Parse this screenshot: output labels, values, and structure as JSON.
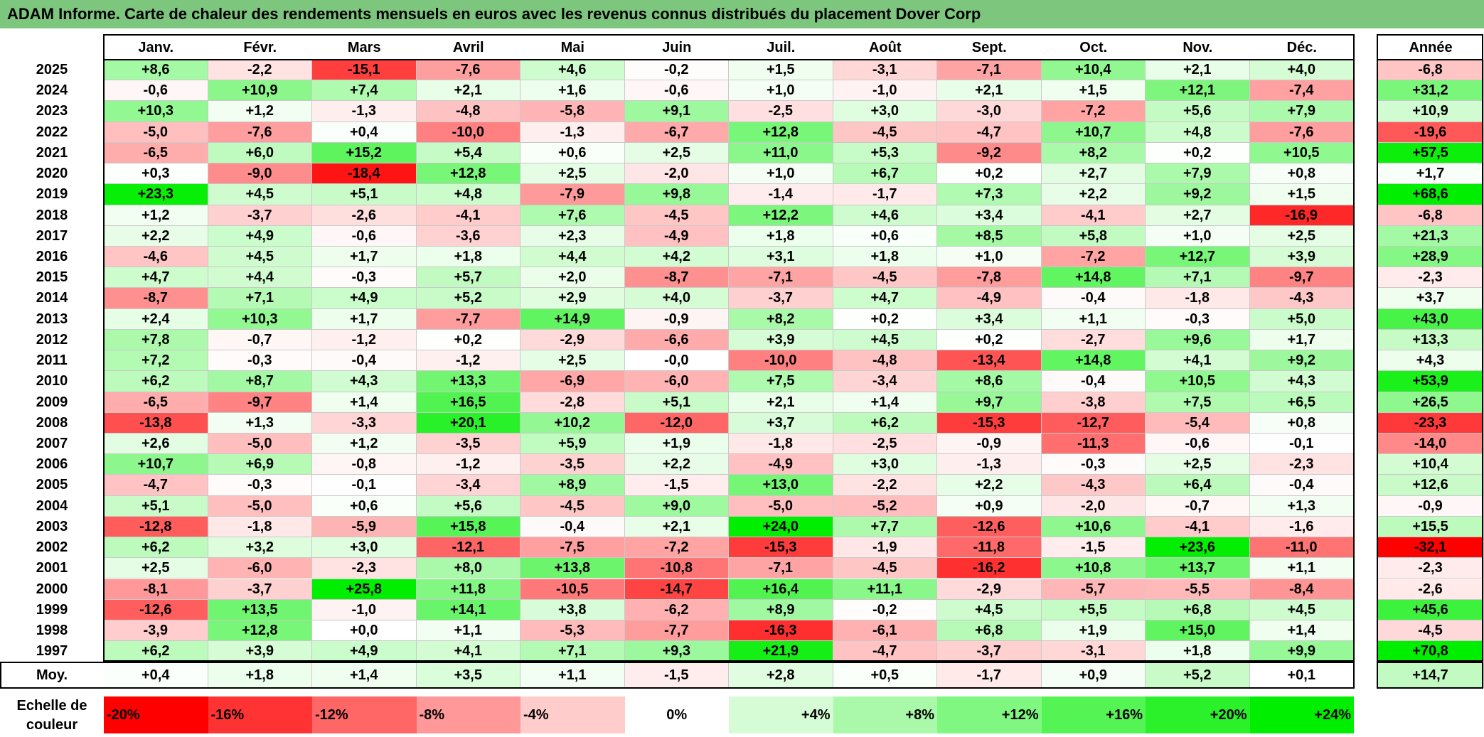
{
  "title": "ADAM Informe. Carte de chaleur des rendements mensuels en euros avec les revenus connus distribués du placement Dover Corp",
  "months": [
    "Janv.",
    "Févr.",
    "Mars",
    "Avril",
    "Mai",
    "Juin",
    "Juil.",
    "Août",
    "Sept.",
    "Oct.",
    "Nov.",
    "Déc."
  ],
  "year_header": "Année",
  "avg_label": "Moy.",
  "scale_label": "Echelle de couleur",
  "colors": {
    "negative_max": "#ff0000",
    "neutral": "#ffffff",
    "positive_max": "#00ee00",
    "title_bg": "#7dc67d"
  },
  "chart_data": {
    "type": "heatmap",
    "title": "ADAM Informe. Carte de chaleur des rendements mensuels en euros avec les revenus connus distribués du placement Dover Corp",
    "x_categories": [
      "Janv.",
      "Févr.",
      "Mars",
      "Avril",
      "Mai",
      "Juin",
      "Juil.",
      "Août",
      "Sept.",
      "Oct.",
      "Nov.",
      "Déc."
    ],
    "color_range": [
      -20,
      24
    ],
    "rows": [
      {
        "year": "2025",
        "values": [
          "+8,6",
          "-2,2",
          "-15,1",
          "-7,6",
          "+4,6",
          "-0,2",
          "+1,5",
          "-3,1",
          "-7,1",
          "+10,4",
          "+2,1",
          "+4,0"
        ],
        "annual": "-6,8"
      },
      {
        "year": "2024",
        "values": [
          "-0,6",
          "+10,9",
          "+7,4",
          "+2,1",
          "+1,6",
          "-0,6",
          "+1,0",
          "-1,0",
          "+2,1",
          "+1,5",
          "+12,1",
          "-7,4"
        ],
        "annual": "+31,2"
      },
      {
        "year": "2023",
        "values": [
          "+10,3",
          "+1,2",
          "-1,3",
          "-4,8",
          "-5,8",
          "+9,1",
          "-2,5",
          "+3,0",
          "-3,0",
          "-7,2",
          "+5,6",
          "+7,9"
        ],
        "annual": "+10,9"
      },
      {
        "year": "2022",
        "values": [
          "-5,0",
          "-7,6",
          "+0,4",
          "-10,0",
          "-1,3",
          "-6,7",
          "+12,8",
          "-4,5",
          "-4,7",
          "+10,7",
          "+4,8",
          "-7,6"
        ],
        "annual": "-19,6"
      },
      {
        "year": "2021",
        "values": [
          "-6,5",
          "+6,0",
          "+15,2",
          "+5,4",
          "+0,6",
          "+2,5",
          "+11,0",
          "+5,3",
          "-9,2",
          "+8,2",
          "+0,2",
          "+10,5"
        ],
        "annual": "+57,5"
      },
      {
        "year": "2020",
        "values": [
          "+0,3",
          "-9,0",
          "-18,4",
          "+12,8",
          "+2,5",
          "-2,0",
          "+1,0",
          "+6,7",
          "+0,2",
          "+2,7",
          "+7,9",
          "+0,8"
        ],
        "annual": "+1,7"
      },
      {
        "year": "2019",
        "values": [
          "+23,3",
          "+4,5",
          "+5,1",
          "+4,8",
          "-7,9",
          "+9,8",
          "-1,4",
          "-1,7",
          "+7,3",
          "+2,2",
          "+9,2",
          "+1,5"
        ],
        "annual": "+68,6"
      },
      {
        "year": "2018",
        "values": [
          "+1,2",
          "-3,7",
          "-2,6",
          "-4,1",
          "+7,6",
          "-4,5",
          "+12,2",
          "+4,6",
          "+3,4",
          "-4,1",
          "+2,7",
          "-16,9"
        ],
        "annual": "-6,8"
      },
      {
        "year": "2017",
        "values": [
          "+2,2",
          "+4,9",
          "-0,6",
          "-3,6",
          "+2,3",
          "-4,9",
          "+1,8",
          "+0,6",
          "+8,5",
          "+5,8",
          "+1,0",
          "+2,5"
        ],
        "annual": "+21,3"
      },
      {
        "year": "2016",
        "values": [
          "-4,6",
          "+4,5",
          "+1,7",
          "+1,8",
          "+4,4",
          "+4,2",
          "+3,1",
          "+1,8",
          "+1,0",
          "-7,2",
          "+12,7",
          "+3,9"
        ],
        "annual": "+28,9"
      },
      {
        "year": "2015",
        "values": [
          "+4,7",
          "+4,4",
          "-0,3",
          "+5,7",
          "+2,0",
          "-8,7",
          "-7,1",
          "-4,5",
          "-7,8",
          "+14,8",
          "+7,1",
          "-9,7"
        ],
        "annual": "-2,3"
      },
      {
        "year": "2014",
        "values": [
          "-8,7",
          "+7,1",
          "+4,9",
          "+5,2",
          "+2,9",
          "+4,0",
          "-3,7",
          "+4,7",
          "-4,9",
          "-0,4",
          "-1,8",
          "-4,3"
        ],
        "annual": "+3,7"
      },
      {
        "year": "2013",
        "values": [
          "+2,4",
          "+10,3",
          "+1,7",
          "-7,7",
          "+14,9",
          "-0,9",
          "+8,2",
          "+0,2",
          "+3,4",
          "+1,1",
          "-0,3",
          "+5,0"
        ],
        "annual": "+43,0"
      },
      {
        "year": "2012",
        "values": [
          "+7,8",
          "-0,7",
          "-1,2",
          "+0,2",
          "-2,9",
          "-6,6",
          "+3,9",
          "+4,5",
          "+0,2",
          "-2,7",
          "+9,6",
          "+1,7"
        ],
        "annual": "+13,3"
      },
      {
        "year": "2011",
        "values": [
          "+7,2",
          "-0,3",
          "-0,4",
          "-1,2",
          "+2,5",
          "-0,0",
          "-10,0",
          "-4,8",
          "-13,4",
          "+14,8",
          "+4,1",
          "+9,2"
        ],
        "annual": "+4,3"
      },
      {
        "year": "2010",
        "values": [
          "+6,2",
          "+8,7",
          "+4,3",
          "+13,3",
          "-6,9",
          "-6,0",
          "+7,5",
          "-3,4",
          "+8,6",
          "-0,4",
          "+10,5",
          "+4,3"
        ],
        "annual": "+53,9"
      },
      {
        "year": "2009",
        "values": [
          "-6,5",
          "-9,7",
          "+1,4",
          "+16,5",
          "-2,8",
          "+5,1",
          "+2,1",
          "+1,4",
          "+9,7",
          "-3,8",
          "+7,5",
          "+6,5"
        ],
        "annual": "+26,5"
      },
      {
        "year": "2008",
        "values": [
          "-13,8",
          "+1,3",
          "-3,3",
          "+20,1",
          "+10,2",
          "-12,0",
          "+3,7",
          "+6,2",
          "-15,3",
          "-12,7",
          "-5,4",
          "+0,8"
        ],
        "annual": "-23,3"
      },
      {
        "year": "2007",
        "values": [
          "+2,6",
          "-5,0",
          "+1,2",
          "-3,5",
          "+5,9",
          "+1,9",
          "-1,8",
          "-2,5",
          "-0,9",
          "-11,3",
          "-0,6",
          "-0,1"
        ],
        "annual": "-14,0"
      },
      {
        "year": "2006",
        "values": [
          "+10,7",
          "+6,9",
          "-0,8",
          "-1,2",
          "-3,5",
          "+2,2",
          "-4,9",
          "+3,0",
          "-1,3",
          "-0,3",
          "+2,5",
          "-2,3"
        ],
        "annual": "+10,4"
      },
      {
        "year": "2005",
        "values": [
          "-4,7",
          "-0,3",
          "-0,1",
          "-3,4",
          "+8,9",
          "-1,5",
          "+13,0",
          "-2,2",
          "+2,2",
          "-4,3",
          "+6,4",
          "-0,4"
        ],
        "annual": "+12,6"
      },
      {
        "year": "2004",
        "values": [
          "+5,1",
          "-5,0",
          "+0,6",
          "+5,6",
          "-4,5",
          "+9,0",
          "-5,0",
          "-5,2",
          "+0,9",
          "-2,0",
          "-0,7",
          "+1,3"
        ],
        "annual": "-0,9"
      },
      {
        "year": "2003",
        "values": [
          "-12,8",
          "-1,8",
          "-5,9",
          "+15,8",
          "-0,4",
          "+2,1",
          "+24,0",
          "+7,7",
          "-12,6",
          "+10,6",
          "-4,1",
          "-1,6"
        ],
        "annual": "+15,5"
      },
      {
        "year": "2002",
        "values": [
          "+6,2",
          "+3,2",
          "+3,0",
          "-12,1",
          "-7,5",
          "-7,2",
          "-15,3",
          "-1,9",
          "-11,8",
          "-1,5",
          "+23,6",
          "-11,0"
        ],
        "annual": "-32,1"
      },
      {
        "year": "2001",
        "values": [
          "+2,5",
          "-6,0",
          "-2,3",
          "+8,0",
          "+13,8",
          "-10,8",
          "-7,1",
          "-4,5",
          "-16,2",
          "+10,8",
          "+13,7",
          "+1,1"
        ],
        "annual": "-2,3"
      },
      {
        "year": "2000",
        "values": [
          "-8,1",
          "-3,7",
          "+25,8",
          "+11,8",
          "-10,5",
          "-14,7",
          "+16,4",
          "+11,1",
          "-2,9",
          "-5,7",
          "-5,5",
          "-8,4"
        ],
        "annual": "-2,6"
      },
      {
        "year": "1999",
        "values": [
          "-12,6",
          "+13,5",
          "-1,0",
          "+14,1",
          "+3,8",
          "-6,2",
          "+8,9",
          "-0,2",
          "+4,5",
          "+5,5",
          "+6,8",
          "+4,5"
        ],
        "annual": "+45,6"
      },
      {
        "year": "1998",
        "values": [
          "-3,9",
          "+12,8",
          "+0,0",
          "+1,1",
          "-5,3",
          "-7,7",
          "-16,3",
          "-6,1",
          "+6,8",
          "+1,9",
          "+15,0",
          "+1,4"
        ],
        "annual": "-4,5"
      },
      {
        "year": "1997",
        "values": [
          "+6,2",
          "+3,9",
          "+4,9",
          "+4,1",
          "+7,1",
          "+9,3",
          "+21,9",
          "-4,7",
          "-3,7",
          "-3,1",
          "+1,8",
          "+9,9"
        ],
        "annual": "+70,8"
      }
    ],
    "averages": [
      "+0,4",
      "+1,8",
      "+1,4",
      "+3,5",
      "+1,1",
      "-1,5",
      "+2,8",
      "+0,5",
      "-1,7",
      "+0,9",
      "+5,2",
      "+0,1"
    ],
    "average_annual": "+14,7",
    "scale": [
      {
        "label": "-20%",
        "value": -20
      },
      {
        "label": "-16%",
        "value": -16
      },
      {
        "label": "-12%",
        "value": -12
      },
      {
        "label": "-8%",
        "value": -8
      },
      {
        "label": "-4%",
        "value": -4
      },
      {
        "label": "0%",
        "value": 0
      },
      {
        "label": "+4%",
        "value": 4
      },
      {
        "label": "+8%",
        "value": 8
      },
      {
        "label": "+12%",
        "value": 12
      },
      {
        "label": "+16%",
        "value": 16
      },
      {
        "label": "+20%",
        "value": 20
      },
      {
        "label": "+24%",
        "value": 24
      }
    ]
  }
}
